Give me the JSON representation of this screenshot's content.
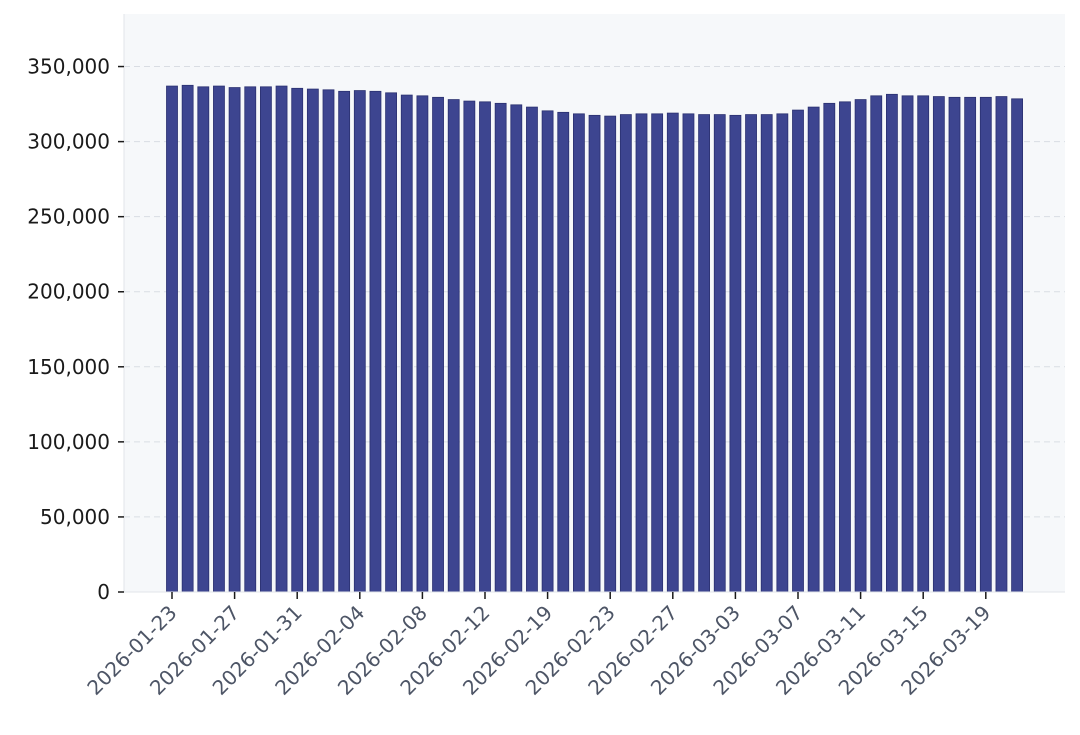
{
  "chart_data": {
    "type": "bar",
    "title": "",
    "xlabel": "",
    "ylabel": "",
    "ylim": [
      0,
      385000
    ],
    "yticks": [
      0,
      50000,
      100000,
      150000,
      200000,
      250000,
      300000,
      350000
    ],
    "ytick_labels": [
      "0",
      "50,000",
      "100,000",
      "150,000",
      "200,000",
      "250,000",
      "300,000",
      "350,000"
    ],
    "grid": "horizontal-dashed",
    "legend": "none",
    "bar_color": "#3d4590",
    "plot_background": "#f6f8fa",
    "categories": [
      "2026-01-23",
      "2026-01-24",
      "2026-01-25",
      "2026-01-26",
      "2026-01-27",
      "2026-01-28",
      "2026-01-29",
      "2026-01-30",
      "2026-01-31",
      "2026-02-01",
      "2026-02-02",
      "2026-02-03",
      "2026-02-04",
      "2026-02-05",
      "2026-02-06",
      "2026-02-07",
      "2026-02-08",
      "2026-02-09",
      "2026-02-10",
      "2026-02-11",
      "2026-02-12",
      "2026-02-13",
      "2026-02-14",
      "2026-02-18",
      "2026-02-19",
      "2026-02-20",
      "2026-02-21",
      "2026-02-22",
      "2026-02-23",
      "2026-02-24",
      "2026-02-25",
      "2026-02-26",
      "2026-02-27",
      "2026-02-28",
      "2026-03-01",
      "2026-03-02",
      "2026-03-03",
      "2026-03-04",
      "2026-03-05",
      "2026-03-06",
      "2026-03-07",
      "2026-03-08",
      "2026-03-09",
      "2026-03-10",
      "2026-03-11",
      "2026-03-12",
      "2026-03-13",
      "2026-03-14",
      "2026-03-15",
      "2026-03-16",
      "2026-03-17",
      "2026-03-18",
      "2026-03-19",
      "2026-03-20",
      "2026-03-21"
    ],
    "values": [
      337000,
      337500,
      336500,
      337000,
      336000,
      336500,
      336500,
      337000,
      335500,
      335000,
      334500,
      333500,
      334000,
      333500,
      332500,
      331000,
      330500,
      329500,
      328000,
      327000,
      326500,
      325500,
      324500,
      323000,
      320500,
      319500,
      318500,
      317500,
      317000,
      318000,
      318500,
      318500,
      319000,
      318500,
      318000,
      318000,
      317500,
      318000,
      318000,
      318500,
      321000,
      323000,
      325500,
      326500,
      328000,
      330500,
      331500,
      330500,
      330500,
      330000,
      329500,
      329500,
      329500,
      330000,
      328500
    ],
    "xtick_labels": [
      "2026-01-23",
      "2026-01-27",
      "2026-01-31",
      "2026-02-04",
      "2026-02-08",
      "2026-02-12",
      "2026-02-19",
      "2026-02-23",
      "2026-02-27",
      "2026-03-03",
      "2026-03-07",
      "2026-03-11",
      "2026-03-15",
      "2026-03-19"
    ]
  }
}
